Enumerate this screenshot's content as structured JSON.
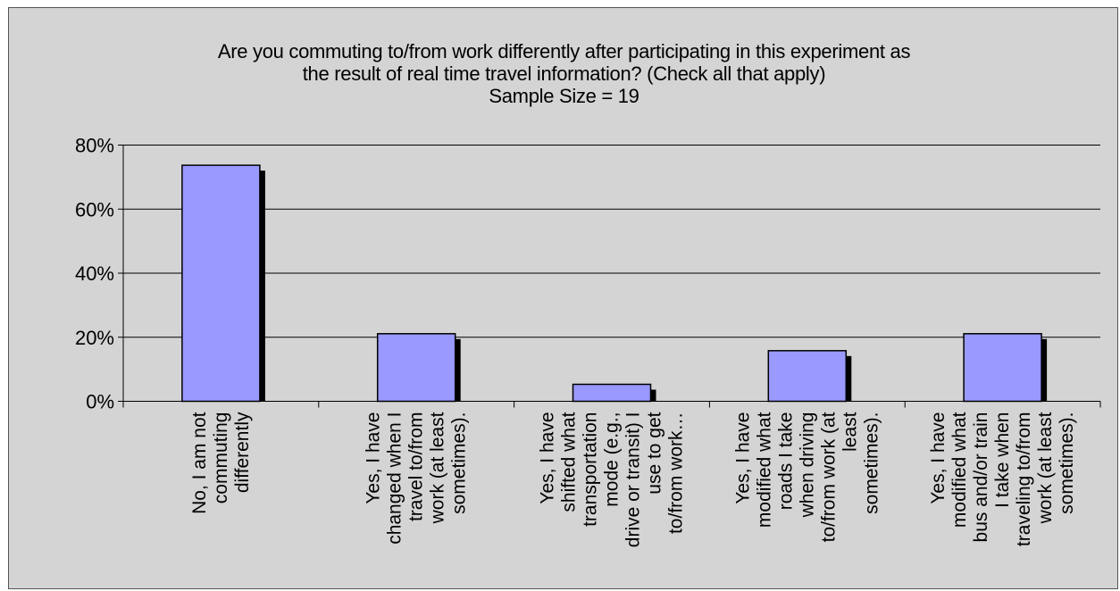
{
  "chart_data": {
    "type": "bar",
    "title_lines": [
      "Are you commuting to/from work differently after participating in this experiment as",
      "the result of real time travel information? (Check all that apply)",
      "Sample Size = 19"
    ],
    "categories": [
      [
        "No, I am not",
        "commuting",
        "differently"
      ],
      [
        "Yes, I have",
        "changed when I",
        "travel to/from",
        "work (at least",
        "sometimes)."
      ],
      [
        "Yes, I have",
        "shifted what",
        "transportation",
        "mode (e.g.,",
        "drive or transit) I",
        "use to get",
        "to/from work…"
      ],
      [
        "Yes, I have",
        "modified what",
        "roads I take",
        "when driving",
        "to/from work (at",
        "least",
        "sometimes)."
      ],
      [
        "Yes, I have",
        "modified what",
        "bus and/or train",
        "I take when",
        "traveling to/from",
        "work (at least",
        "sometimes)."
      ]
    ],
    "values": [
      73.7,
      21.1,
      5.3,
      15.8,
      21.1
    ],
    "y_ticks": [
      0,
      20,
      40,
      60,
      80
    ],
    "y_tick_labels": [
      "0%",
      "20%",
      "40%",
      "60%",
      "80%"
    ],
    "ylim": [
      0,
      80
    ],
    "grid": true,
    "bar_color": "#9999ff",
    "shadow_color": "#000000",
    "background_color": "#d4d4d4"
  }
}
